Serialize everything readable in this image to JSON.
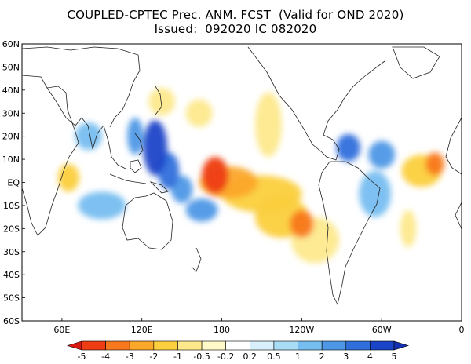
{
  "header": {
    "title_line1": "COUPLED-CPTEC Prec. ANM. FCST  (Valid for OND 2020)",
    "title_line2": "Issued:  092020 IC 082020"
  },
  "map": {
    "lat_labels": [
      "60N",
      "50N",
      "40N",
      "30N",
      "20N",
      "10N",
      "EQ",
      "10S",
      "20S",
      "30S",
      "40S",
      "50S",
      "60S"
    ],
    "lon_labels": [
      "60E",
      "120E",
      "180",
      "120W",
      "60W",
      "0"
    ],
    "colors": {
      "ocean_bg": "#ffffff",
      "coast": "#222222"
    }
  },
  "colorbar": {
    "labels": [
      "-5",
      "-4",
      "-3",
      "-2",
      "-1",
      "-0.5",
      "-0.2",
      "0.2",
      "0.5",
      "1",
      "2",
      "3",
      "4",
      "5"
    ],
    "colors": [
      "#d7190f",
      "#ee3d12",
      "#f8781d",
      "#fba82a",
      "#fbcf3d",
      "#fde98c",
      "#fff8c8",
      "#ffffff",
      "#d7f0fb",
      "#a9dcf5",
      "#76bdf0",
      "#4e97e6",
      "#2f6fdb",
      "#1b45c8",
      "#1530b0"
    ]
  },
  "anomalies": [
    {
      "lon": 175,
      "lat": 3,
      "value": -5,
      "rx": 10,
      "ry": 8
    },
    {
      "lon": 185,
      "lat": 0,
      "value": -3,
      "rx": 22,
      "ry": 7
    },
    {
      "lon": 210,
      "lat": -5,
      "value": -2,
      "rx": 30,
      "ry": 8
    },
    {
      "lon": 240,
      "lat": -18,
      "value": -4,
      "rx": 9,
      "ry": 6
    },
    {
      "lon": 225,
      "lat": -15,
      "value": -2,
      "rx": 20,
      "ry": 9
    },
    {
      "lon": 250,
      "lat": -25,
      "value": -1,
      "rx": 18,
      "ry": 10
    },
    {
      "lon": 340,
      "lat": 8,
      "value": -4,
      "rx": 7,
      "ry": 5
    },
    {
      "lon": 330,
      "lat": 5,
      "value": -2,
      "rx": 15,
      "ry": 7
    },
    {
      "lon": 65,
      "lat": 2,
      "value": -2,
      "rx": 8,
      "ry": 6
    },
    {
      "lon": 135,
      "lat": 35,
      "value": -1,
      "rx": 10,
      "ry": 6
    },
    {
      "lon": 163,
      "lat": 30,
      "value": -1,
      "rx": 10,
      "ry": 6
    },
    {
      "lon": 215,
      "lat": 25,
      "value": -1,
      "rx": 10,
      "ry": 14
    },
    {
      "lon": 320,
      "lat": -20,
      "value": -1,
      "rx": 6,
      "ry": 8
    },
    {
      "lon": 130,
      "lat": 15,
      "value": 4,
      "rx": 9,
      "ry": 12
    },
    {
      "lon": 140,
      "lat": 5,
      "value": 3,
      "rx": 8,
      "ry": 8
    },
    {
      "lon": 115,
      "lat": 20,
      "value": 2,
      "rx": 6,
      "ry": 8
    },
    {
      "lon": 150,
      "lat": -3,
      "value": 2,
      "rx": 8,
      "ry": 6
    },
    {
      "lon": 165,
      "lat": -12,
      "value": 2,
      "rx": 12,
      "ry": 5
    },
    {
      "lon": 90,
      "lat": -10,
      "value": 1,
      "rx": 18,
      "ry": 6
    },
    {
      "lon": 275,
      "lat": 15,
      "value": 3,
      "rx": 9,
      "ry": 6
    },
    {
      "lon": 300,
      "lat": 12,
      "value": 2,
      "rx": 10,
      "ry": 6
    },
    {
      "lon": 295,
      "lat": -5,
      "value": 1,
      "rx": 12,
      "ry": 10
    },
    {
      "lon": 80,
      "lat": 20,
      "value": 1,
      "rx": 10,
      "ry": 6
    }
  ]
}
